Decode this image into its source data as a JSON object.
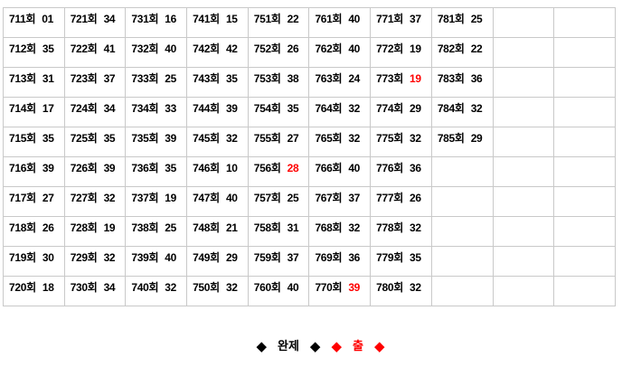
{
  "page": {
    "background_color": "#ffffff",
    "grid_color": "#c9c9c9",
    "text_color": "#000000",
    "highlight_color": "#ff0000"
  },
  "table": {
    "columns": 10,
    "rows": 10,
    "cells": [
      [
        {
          "round": "711회",
          "num": "01",
          "red": false
        },
        {
          "round": "721회",
          "num": "34",
          "red": false
        },
        {
          "round": "731회",
          "num": "16",
          "red": false
        },
        {
          "round": "741회",
          "num": "15",
          "red": false
        },
        {
          "round": "751회",
          "num": "22",
          "red": false
        },
        {
          "round": "761회",
          "num": "40",
          "red": false
        },
        {
          "round": "771회",
          "num": "37",
          "red": false
        },
        {
          "round": "781회",
          "num": "25",
          "red": false
        },
        null,
        null
      ],
      [
        {
          "round": "712회",
          "num": "35",
          "red": false
        },
        {
          "round": "722회",
          "num": "41",
          "red": false
        },
        {
          "round": "732회",
          "num": "40",
          "red": false
        },
        {
          "round": "742회",
          "num": "42",
          "red": false
        },
        {
          "round": "752회",
          "num": "26",
          "red": false
        },
        {
          "round": "762회",
          "num": "40",
          "red": false
        },
        {
          "round": "772회",
          "num": "19",
          "red": false
        },
        {
          "round": "782회",
          "num": "22",
          "red": false
        },
        null,
        null
      ],
      [
        {
          "round": "713회",
          "num": "31",
          "red": false
        },
        {
          "round": "723회",
          "num": "37",
          "red": false
        },
        {
          "round": "733회",
          "num": "25",
          "red": false
        },
        {
          "round": "743회",
          "num": "35",
          "red": false
        },
        {
          "round": "753회",
          "num": "38",
          "red": false
        },
        {
          "round": "763회",
          "num": "24",
          "red": false
        },
        {
          "round": "773회",
          "num": "19",
          "red": true
        },
        {
          "round": "783회",
          "num": "36",
          "red": false
        },
        null,
        null
      ],
      [
        {
          "round": "714회",
          "num": "17",
          "red": false
        },
        {
          "round": "724회",
          "num": "34",
          "red": false
        },
        {
          "round": "734회",
          "num": "33",
          "red": false
        },
        {
          "round": "744회",
          "num": "39",
          "red": false
        },
        {
          "round": "754회",
          "num": "35",
          "red": false
        },
        {
          "round": "764회",
          "num": "32",
          "red": false
        },
        {
          "round": "774회",
          "num": "29",
          "red": false
        },
        {
          "round": "784회",
          "num": "32",
          "red": false
        },
        null,
        null
      ],
      [
        {
          "round": "715회",
          "num": "35",
          "red": false
        },
        {
          "round": "725회",
          "num": "35",
          "red": false
        },
        {
          "round": "735회",
          "num": "39",
          "red": false
        },
        {
          "round": "745회",
          "num": "32",
          "red": false
        },
        {
          "round": "755회",
          "num": "27",
          "red": false
        },
        {
          "round": "765회",
          "num": "32",
          "red": false
        },
        {
          "round": "775회",
          "num": "32",
          "red": false
        },
        {
          "round": "785회",
          "num": "29",
          "red": false
        },
        null,
        null
      ],
      [
        {
          "round": "716회",
          "num": "39",
          "red": false
        },
        {
          "round": "726회",
          "num": "39",
          "red": false
        },
        {
          "round": "736회",
          "num": "35",
          "red": false
        },
        {
          "round": "746회",
          "num": "10",
          "red": false
        },
        {
          "round": "756회",
          "num": "28",
          "red": true
        },
        {
          "round": "766회",
          "num": "40",
          "red": false
        },
        {
          "round": "776회",
          "num": "36",
          "red": false
        },
        null,
        null,
        null
      ],
      [
        {
          "round": "717회",
          "num": "27",
          "red": false
        },
        {
          "round": "727회",
          "num": "32",
          "red": false
        },
        {
          "round": "737회",
          "num": "19",
          "red": false
        },
        {
          "round": "747회",
          "num": "40",
          "red": false
        },
        {
          "round": "757회",
          "num": "25",
          "red": false
        },
        {
          "round": "767회",
          "num": "37",
          "red": false
        },
        {
          "round": "777회",
          "num": "26",
          "red": false
        },
        null,
        null,
        null
      ],
      [
        {
          "round": "718회",
          "num": "26",
          "red": false
        },
        {
          "round": "728회",
          "num": "19",
          "red": false
        },
        {
          "round": "738회",
          "num": "25",
          "red": false
        },
        {
          "round": "748회",
          "num": "21",
          "red": false
        },
        {
          "round": "758회",
          "num": "31",
          "red": false
        },
        {
          "round": "768회",
          "num": "32",
          "red": false
        },
        {
          "round": "778회",
          "num": "32",
          "red": false
        },
        null,
        null,
        null
      ],
      [
        {
          "round": "719회",
          "num": "30",
          "red": false
        },
        {
          "round": "729회",
          "num": "32",
          "red": false
        },
        {
          "round": "739회",
          "num": "40",
          "red": false
        },
        {
          "round": "749회",
          "num": "29",
          "red": false
        },
        {
          "round": "759회",
          "num": "37",
          "red": false
        },
        {
          "round": "769회",
          "num": "36",
          "red": false
        },
        {
          "round": "779회",
          "num": "35",
          "red": false
        },
        null,
        null,
        null
      ],
      [
        {
          "round": "720회",
          "num": "18",
          "red": false
        },
        {
          "round": "730회",
          "num": "34",
          "red": false
        },
        {
          "round": "740회",
          "num": "32",
          "red": false
        },
        {
          "round": "750회",
          "num": "32",
          "red": false
        },
        {
          "round": "760회",
          "num": "40",
          "red": false
        },
        {
          "round": "770회",
          "num": "39",
          "red": true
        },
        {
          "round": "780회",
          "num": "32",
          "red": false
        },
        null,
        null,
        null
      ]
    ]
  },
  "legend": {
    "segments": [
      {
        "text": "◆",
        "color": "#000000",
        "kind": "diamond"
      },
      {
        "text": "완제",
        "color": "#000000",
        "kind": "label"
      },
      {
        "text": "◆",
        "color": "#000000",
        "kind": "diamond"
      },
      {
        "text": "◆",
        "color": "#ff0000",
        "kind": "diamond"
      },
      {
        "text": "출",
        "color": "#ff0000",
        "kind": "label"
      },
      {
        "text": "◆",
        "color": "#ff0000",
        "kind": "diamond"
      }
    ]
  }
}
